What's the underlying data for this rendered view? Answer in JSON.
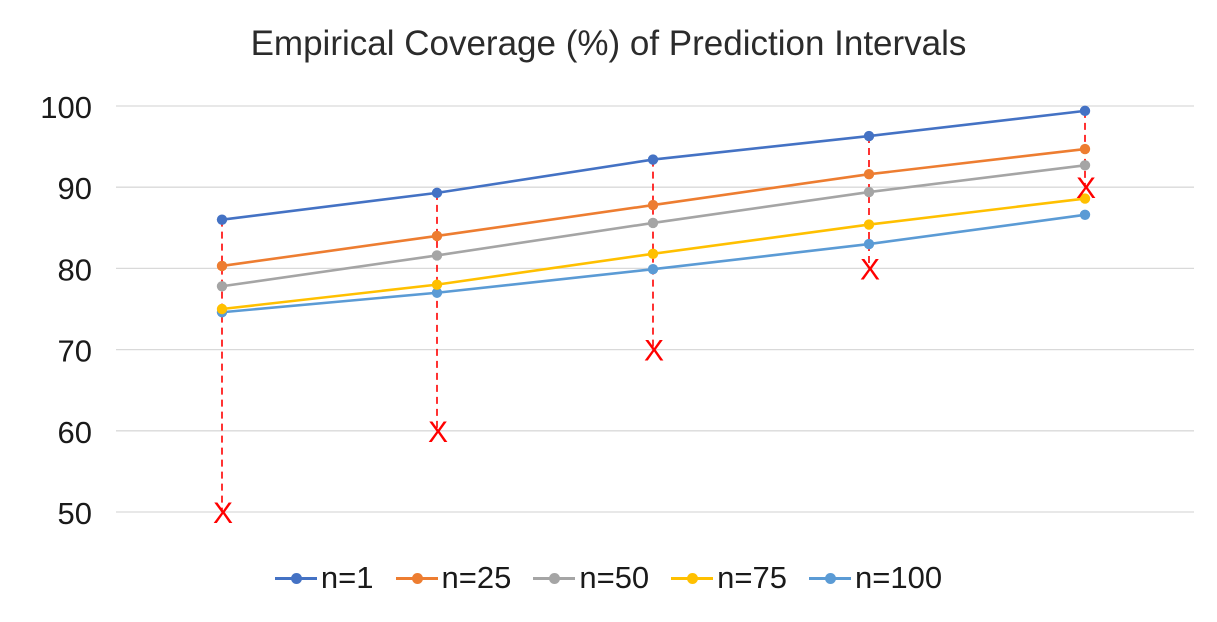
{
  "chart_data": {
    "type": "line",
    "title": "Empirical Coverage (%) of Prediction Intervals",
    "xlabel": "",
    "ylabel": "",
    "ylim": [
      50,
      100
    ],
    "yticks": [
      50,
      60,
      70,
      80,
      90,
      100
    ],
    "x": [
      1,
      2,
      3,
      4,
      5
    ],
    "grid": true,
    "legend_position": "bottom",
    "series": [
      {
        "name": "n=1",
        "color": "#4472C4",
        "values": [
          86.0,
          89.3,
          93.4,
          96.3,
          99.4
        ]
      },
      {
        "name": "n=25",
        "color": "#ED7D31",
        "values": [
          80.3,
          84.0,
          87.8,
          91.6,
          94.7
        ]
      },
      {
        "name": "n=50",
        "color": "#A5A5A5",
        "values": [
          77.8,
          81.6,
          85.6,
          89.4,
          92.7
        ]
      },
      {
        "name": "n=75",
        "color": "#FFC000",
        "values": [
          75.0,
          78.0,
          81.8,
          85.4,
          88.6
        ]
      },
      {
        "name": "n=100",
        "color": "#5B9BD5",
        "values": [
          74.6,
          77.0,
          79.9,
          83.0,
          86.6
        ]
      }
    ],
    "nominal_markers": {
      "color": "#FF0000",
      "marker": "X",
      "values": [
        50,
        60,
        70,
        80,
        90
      ]
    }
  }
}
